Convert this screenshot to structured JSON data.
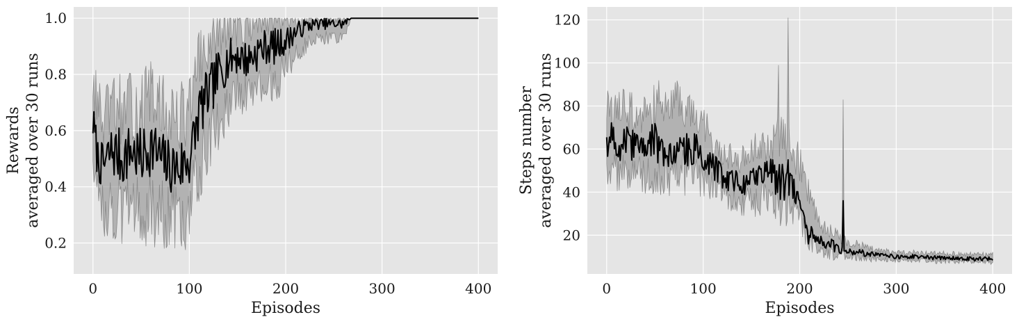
{
  "chart_data": [
    {
      "type": "line",
      "xlabel": "Episodes",
      "ylabel_lines": [
        "Rewards",
        "averaged over 30 runs"
      ],
      "xlim": [
        -20,
        420
      ],
      "ylim": [
        0.09,
        1.04
      ],
      "xticks": [
        0,
        100,
        200,
        300,
        400
      ],
      "yticks": [
        0.2,
        0.4,
        0.6,
        0.8,
        1.0
      ],
      "xtick_labels": [
        "0",
        "100",
        "200",
        "300",
        "400"
      ],
      "ytick_labels": [
        "0.2",
        "0.4",
        "0.6",
        "0.8",
        "1.0"
      ],
      "grid": true,
      "series": [
        {
          "mean": {
            "x": [
              0,
              5,
              10,
              20,
              30,
              40,
              50,
              60,
              70,
              80,
              90,
              100,
              105,
              110,
              120,
              130,
              140,
              150,
              160,
              170,
              180,
              190,
              200,
              210,
              220,
              230,
              240,
              250,
              260,
              268,
              270,
              300,
              350,
              400
            ],
            "y": [
              0.63,
              0.5,
              0.47,
              0.53,
              0.5,
              0.53,
              0.5,
              0.55,
              0.5,
              0.47,
              0.47,
              0.5,
              0.57,
              0.67,
              0.73,
              0.8,
              0.85,
              0.87,
              0.85,
              0.88,
              0.9,
              0.9,
              0.92,
              0.95,
              0.97,
              0.98,
              0.98,
              0.98,
              0.98,
              1.0,
              1.0,
              1.0,
              1.0,
              1.0
            ]
          },
          "band": {
            "x": [
              0,
              10,
              20,
              30,
              40,
              50,
              60,
              70,
              80,
              90,
              100,
              110,
              120,
              130,
              140,
              150,
              160,
              170,
              180,
              190,
              200,
              210,
              220,
              230,
              240,
              250,
              260,
              268,
              270,
              400
            ],
            "lower": [
              0.5,
              0.33,
              0.33,
              0.3,
              0.33,
              0.3,
              0.33,
              0.3,
              0.3,
              0.27,
              0.3,
              0.47,
              0.57,
              0.63,
              0.7,
              0.73,
              0.73,
              0.75,
              0.77,
              0.77,
              0.83,
              0.87,
              0.9,
              0.93,
              0.93,
              0.93,
              0.93,
              1.0,
              1.0,
              1.0
            ],
            "upper": [
              0.77,
              0.63,
              0.68,
              0.68,
              0.68,
              0.68,
              0.72,
              0.68,
              0.65,
              0.65,
              0.68,
              0.83,
              0.9,
              0.95,
              0.97,
              0.98,
              0.97,
              1.0,
              1.0,
              1.0,
              1.0,
              1.0,
              1.0,
              1.0,
              1.0,
              1.0,
              1.0,
              1.0,
              1.0,
              1.0
            ]
          },
          "line_color": "#000000",
          "band_color": "#888888"
        }
      ]
    },
    {
      "type": "line",
      "xlabel": "Episodes",
      "ylabel_lines": [
        "Steps number",
        "averaged over 30 runs"
      ],
      "xlim": [
        -20,
        420
      ],
      "ylim": [
        2,
        126
      ],
      "xticks": [
        0,
        100,
        200,
        300,
        400
      ],
      "yticks": [
        20,
        40,
        60,
        80,
        100,
        120
      ],
      "xtick_labels": [
        "0",
        "100",
        "200",
        "300",
        "400"
      ],
      "ytick_labels": [
        "20",
        "40",
        "60",
        "80",
        "100",
        "120"
      ],
      "grid": true,
      "series": [
        {
          "mean": {
            "x": [
              0,
              5,
              10,
              20,
              30,
              40,
              50,
              60,
              70,
              80,
              90,
              100,
              110,
              120,
              130,
              140,
              150,
              160,
              170,
              180,
              190,
              200,
              205,
              210,
              220,
              230,
              240,
              250,
              260,
              270,
              280,
              300,
              320,
              340,
              360,
              380,
              400
            ],
            "y": [
              60,
              66,
              62,
              63,
              60,
              62,
              63,
              61,
              60,
              60,
              62,
              58,
              52,
              47,
              45,
              44,
              46,
              46,
              48,
              45,
              42,
              38,
              30,
              20,
              18,
              16,
              14,
              12,
              13,
              11,
              11,
              10,
              10,
              9.5,
              9.5,
              9,
              9
            ],
            "spikes": [
              {
                "x": 188,
                "y": 55
              },
              {
                "x": 245,
                "y": 36
              }
            ]
          },
          "band": {
            "x": [
              0,
              10,
              20,
              30,
              40,
              50,
              60,
              70,
              80,
              90,
              100,
              110,
              120,
              130,
              140,
              150,
              160,
              170,
              180,
              190,
              200,
              210,
              220,
              230,
              240,
              250,
              260,
              270,
              280,
              300,
              320,
              340,
              360,
              380,
              400
            ],
            "lower": [
              48,
              50,
              50,
              48,
              48,
              48,
              50,
              48,
              48,
              48,
              47,
              42,
              38,
              36,
              35,
              36,
              36,
              37,
              35,
              32,
              28,
              17,
              14,
              12,
              11,
              10,
              10,
              9,
              9,
              8.5,
              8.5,
              8,
              8,
              7.5,
              7.5
            ],
            "upper": [
              78,
              80,
              78,
              76,
              78,
              80,
              82,
              80,
              82,
              80,
              74,
              64,
              58,
              56,
              56,
              58,
              62,
              64,
              66,
              60,
              54,
              40,
              26,
              22,
              20,
              16,
              16,
              14,
              13,
              12,
              12,
              11.5,
              11.5,
              11,
              11
            ],
            "spikes": [
              {
                "x": 188,
                "y": 121
              },
              {
                "x": 178,
                "y": 99
              },
              {
                "x": 245,
                "y": 83
              }
            ]
          },
          "line_color": "#000000",
          "band_color": "#888888"
        }
      ]
    }
  ]
}
